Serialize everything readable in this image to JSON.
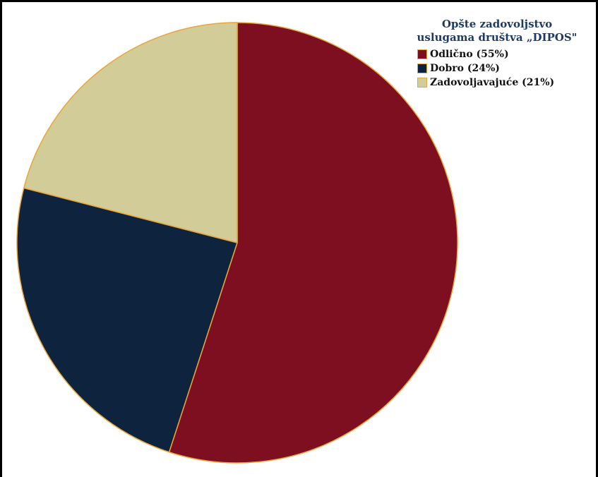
{
  "chart_data": {
    "type": "pie",
    "legend_title": "Opšte zadovoljstvo\nuslugama društva „DIPOS\"",
    "legend_position": "top-right",
    "categories": [
      "Odlično (55%)",
      "Dobro (24%)",
      "Zadovoljavajuće (21%)"
    ],
    "values": [
      55,
      24,
      21
    ],
    "colors": [
      "#7e0f21",
      "#0e233d",
      "#d2cd98"
    ],
    "slice_border_color": "#e8a53a",
    "start_angle": "12 o'clock",
    "direction": "clockwise"
  }
}
